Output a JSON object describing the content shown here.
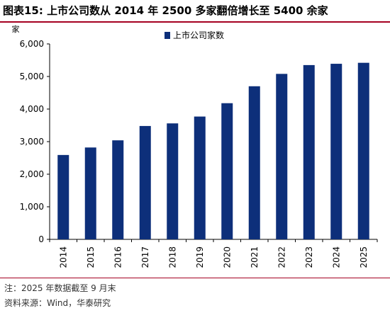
{
  "header": {
    "title": "图表15:  上市公司数从 2014 年 2500 多家翻倍增长至 5400 余家"
  },
  "footer": {
    "note": "注：2025 年数据截至 9 月末",
    "source": "资料来源：Wind，华泰研究"
  },
  "colors": {
    "bar": "#0d2f7a",
    "accent_rule": "#a50021"
  },
  "chart_data": {
    "type": "bar",
    "title": "",
    "unit_label": "家",
    "ylabel": "",
    "xlabel": "",
    "ylim": [
      0,
      6000
    ],
    "yticks": [
      0,
      1000,
      2000,
      3000,
      4000,
      5000,
      6000
    ],
    "ytick_labels": [
      "0",
      "1,000",
      "2,000",
      "3,000",
      "4,000",
      "5,000",
      "6,000"
    ],
    "categories": [
      "2014",
      "2015",
      "2016",
      "2017",
      "2018",
      "2019",
      "2020",
      "2021",
      "2022",
      "2023",
      "2024",
      "2025"
    ],
    "series": [
      {
        "name": "上市公司家数",
        "values": [
          2590,
          2820,
          3040,
          3480,
          3560,
          3770,
          4180,
          4700,
          5080,
          5350,
          5390,
          5420
        ]
      }
    ],
    "legend_position": "top-left",
    "grid": false
  }
}
